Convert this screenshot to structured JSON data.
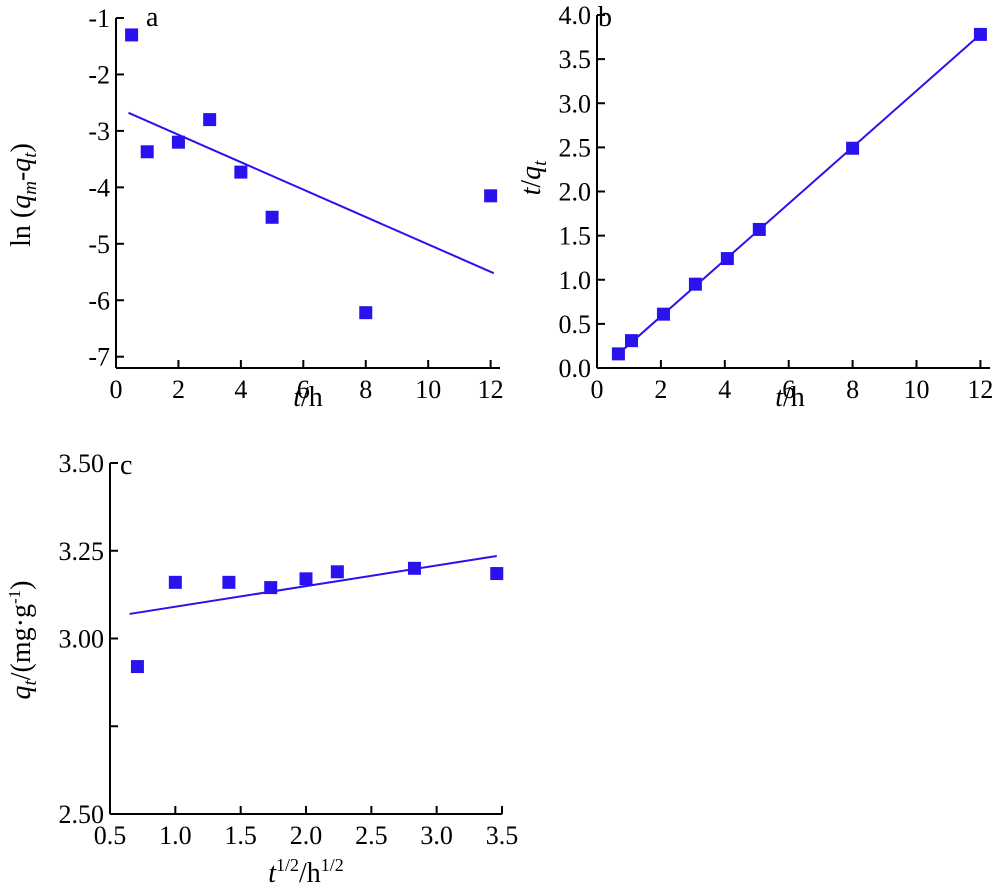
{
  "colors": {
    "marker": "#2a12ee",
    "fit_line": "#2a12ee",
    "axis": "#000000"
  },
  "chart_data": [
    {
      "panel": "a",
      "type": "scatter",
      "title": "",
      "xlabel": "t/h",
      "ylabel": "ln (qm-qt)",
      "xlim": [
        0,
        12.3
      ],
      "ylim": [
        -7.2,
        -1
      ],
      "x_ticks": [
        0,
        2,
        4,
        6,
        8,
        10,
        12
      ],
      "y_ticks": [
        -1,
        -2,
        -3,
        -4,
        -5,
        -6,
        -7
      ],
      "grid": false,
      "legend": "none",
      "series": [
        {
          "x": [
            0.5,
            1,
            2,
            3,
            4,
            5,
            8,
            12
          ],
          "y": [
            -1.3,
            -3.37,
            -3.2,
            -2.8,
            -3.73,
            -4.53,
            -6.22,
            -4.15
          ]
        }
      ],
      "fit_line": {
        "x": [
          0.4,
          12.1
        ],
        "y": [
          -2.68,
          -5.52
        ]
      }
    },
    {
      "panel": "b",
      "type": "scatter",
      "title": "",
      "xlabel": "t/h",
      "ylabel": "t/qt",
      "xlim": [
        0,
        12.3
      ],
      "ylim": [
        0,
        4
      ],
      "x_ticks": [
        0,
        2,
        4,
        6,
        8,
        10,
        12
      ],
      "y_ticks": [
        0.0,
        0.5,
        1.0,
        1.5,
        2.0,
        2.5,
        3.0,
        3.5,
        4.0
      ],
      "x_tick_labels": [
        "0",
        "2",
        "4",
        "6",
        "8",
        "10",
        "12"
      ],
      "y_tick_labels": [
        "0.0",
        "0.5",
        "1.0",
        "1.5",
        "2.0",
        "2.5",
        "3.0",
        "3.5",
        "4.0"
      ],
      "grid": false,
      "legend": "none",
      "series": [
        {
          "x": [
            0.67,
            1.08,
            2.08,
            3.08,
            4.08,
            5.08,
            8.0,
            12.0
          ],
          "y": [
            0.16,
            0.31,
            0.61,
            0.95,
            1.24,
            1.57,
            2.49,
            3.78
          ]
        }
      ],
      "fit_line": {
        "x": [
          0.67,
          12.0
        ],
        "y": [
          0.16,
          3.78
        ]
      }
    },
    {
      "panel": "c",
      "type": "scatter",
      "title": "",
      "xlabel": "t1/2/h1/2",
      "ylabel": "qt/(mg·g-1)",
      "xlim": [
        0.5,
        3.5
      ],
      "ylim": [
        2.5,
        3.5
      ],
      "x_ticks": [
        0.5,
        1.0,
        1.5,
        2.0,
        2.5,
        3.0,
        3.5
      ],
      "y_ticks": [
        2.5,
        2.75,
        3.0,
        3.25,
        3.5
      ],
      "x_tick_labels": [
        "0.5",
        "1.0",
        "1.5",
        "2.0",
        "2.5",
        "3.0",
        "3.5"
      ],
      "y_tick_labels": [
        "2.50",
        "",
        "3.00",
        "3.25",
        "3.50"
      ],
      "grid": false,
      "legend": "none",
      "series": [
        {
          "x": [
            0.71,
            1.0,
            1.41,
            1.73,
            2.0,
            2.24,
            2.83,
            3.46
          ],
          "y": [
            2.92,
            3.16,
            3.16,
            3.145,
            3.17,
            3.19,
            3.2,
            3.185
          ]
        }
      ],
      "fit_line": {
        "x": [
          0.65,
          3.46
        ],
        "y": [
          3.07,
          3.235
        ]
      }
    }
  ]
}
